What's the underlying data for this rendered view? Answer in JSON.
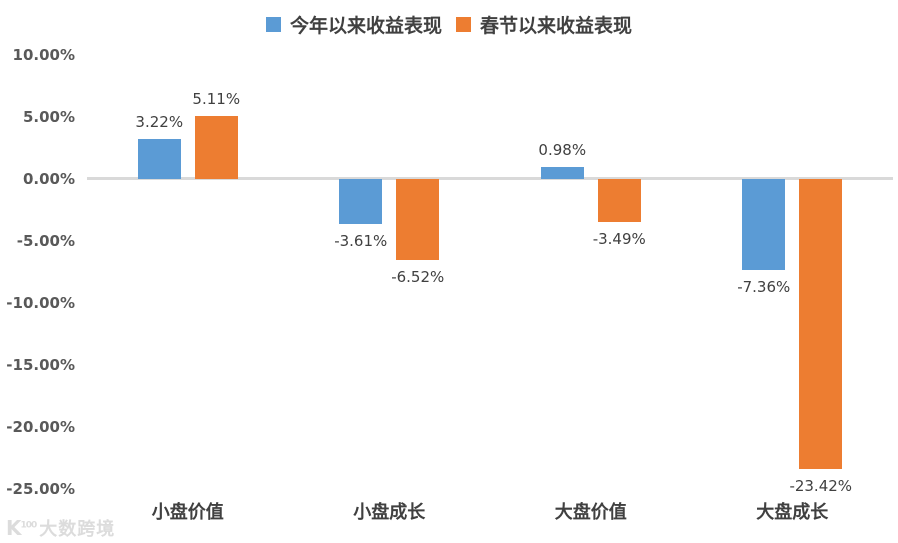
{
  "chart_data": {
    "type": "bar",
    "title": "",
    "categories": [
      "小盘价值",
      "小盘成长",
      "大盘价值",
      "大盘成长"
    ],
    "series": [
      {
        "name": "今年以来收益表现",
        "color": "#5B9BD5",
        "values": [
          3.22,
          -3.61,
          0.98,
          -7.36
        ],
        "labels": [
          "3.22%",
          "-3.61%",
          "0.98%",
          "-7.36%"
        ]
      },
      {
        "name": "春节以来收益表现",
        "color": "#ED7D31",
        "values": [
          5.11,
          -6.52,
          -3.49,
          -23.42
        ],
        "labels": [
          "5.11%",
          "-6.52%",
          "-3.49%",
          "-23.42%"
        ]
      }
    ],
    "y_ticks": [
      "10.00%",
      "5.00%",
      "0.00%",
      "-5.00%",
      "-10.00%",
      "-15.00%",
      "-20.00%",
      "-25.00%"
    ],
    "ylim": [
      -25,
      10
    ],
    "legend_position": "top",
    "grid": false,
    "zero_line_color": "#d9d9d9"
  },
  "watermark": {
    "icon_letter": "K",
    "icon_sup": "100",
    "text": "大数跨境"
  },
  "colors": {
    "background": "#ffffff",
    "series_blue": "#5B9BD5",
    "series_orange": "#ED7D31",
    "data_label_text": "#404040",
    "tick_text": "#595959",
    "zero_line": "#d9d9d9"
  }
}
